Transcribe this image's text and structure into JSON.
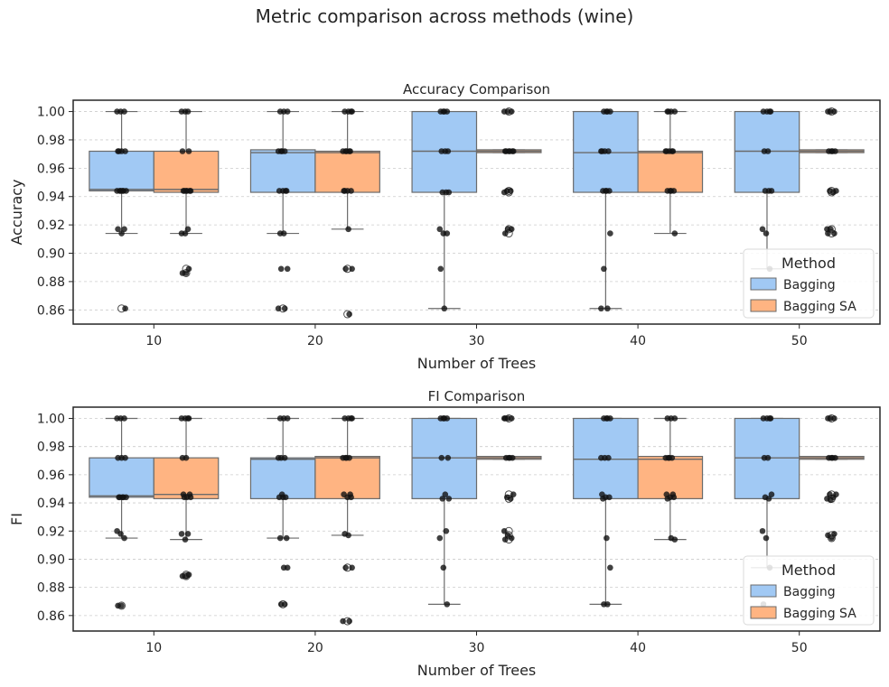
{
  "suptitle": "Metric comparison across methods (wine)",
  "colors": {
    "bagging": "#a1c9f4",
    "bagging_sa": "#ffb482",
    "box_edge": "#6b6b6b",
    "point": "#111111",
    "grid": "#cccccc"
  },
  "legend": {
    "title": "Method",
    "entries": [
      "Bagging",
      "Bagging SA"
    ],
    "placement": "lower-right"
  },
  "chart_data": [
    {
      "type": "box",
      "title": "Accuracy Comparison",
      "xlabel": "Number of Trees",
      "ylabel": "Accuracy",
      "categories": [
        "10",
        "20",
        "30",
        "40",
        "50"
      ],
      "ylim": [
        0.85,
        1.008
      ],
      "yticks": [
        "0.86",
        "0.88",
        "0.90",
        "0.92",
        "0.94",
        "0.96",
        "0.98",
        "1.00"
      ],
      "grid": "y-dashed",
      "series": [
        {
          "name": "Bagging",
          "boxes": [
            {
              "q1": 0.944,
              "median": 0.945,
              "q3": 0.972,
              "whisker_low": 0.914,
              "whisker_high": 1.0,
              "outliers": [
                0.861
              ]
            },
            {
              "q1": 0.943,
              "median": 0.971,
              "q3": 0.973,
              "whisker_low": 0.914,
              "whisker_high": 1.0,
              "outliers": [
                0.861
              ]
            },
            {
              "q1": 0.943,
              "median": 0.972,
              "q3": 1.0,
              "whisker_low": 0.861,
              "whisker_high": 1.0,
              "outliers": []
            },
            {
              "q1": 0.943,
              "median": 0.971,
              "q3": 1.0,
              "whisker_low": 0.861,
              "whisker_high": 1.0,
              "outliers": []
            },
            {
              "q1": 0.943,
              "median": 0.972,
              "q3": 1.0,
              "whisker_low": 0.889,
              "whisker_high": 1.0,
              "outliers": []
            }
          ],
          "points": [
            [
              1.0,
              1.0,
              1.0,
              0.972,
              0.972,
              0.972,
              0.972,
              0.944,
              0.944,
              0.944,
              0.944,
              0.944,
              0.944,
              0.917,
              0.917,
              0.914,
              0.861
            ],
            [
              1.0,
              1.0,
              1.0,
              0.972,
              0.972,
              0.972,
              0.972,
              0.944,
              0.944,
              0.944,
              0.944,
              0.914,
              0.914,
              0.889,
              0.889,
              0.861,
              0.861
            ],
            [
              1.0,
              1.0,
              1.0,
              1.0,
              0.972,
              0.972,
              0.972,
              0.943,
              0.943,
              0.943,
              0.917,
              0.914,
              0.914,
              0.889,
              0.861
            ],
            [
              1.0,
              1.0,
              1.0,
              1.0,
              0.972,
              0.972,
              0.972,
              0.972,
              0.944,
              0.944,
              0.944,
              0.944,
              0.914,
              0.889,
              0.861,
              0.861
            ],
            [
              1.0,
              1.0,
              1.0,
              1.0,
              0.972,
              0.972,
              0.944,
              0.944,
              0.944,
              0.917,
              0.914,
              0.889
            ]
          ]
        },
        {
          "name": "Bagging SA",
          "boxes": [
            {
              "q1": 0.943,
              "median": 0.945,
              "q3": 0.972,
              "whisker_low": 0.914,
              "whisker_high": 1.0,
              "outliers": [
                0.889,
                0.886
              ]
            },
            {
              "q1": 0.943,
              "median": 0.971,
              "q3": 0.972,
              "whisker_low": 0.917,
              "whisker_high": 1.0,
              "outliers": [
                0.889,
                0.857
              ]
            },
            {
              "q1": 0.971,
              "median": 0.972,
              "q3": 0.973,
              "whisker_low": 0.971,
              "whisker_high": 0.973,
              "outliers": [
                1.0,
                0.944,
                0.943,
                0.917,
                0.914
              ]
            },
            {
              "q1": 0.943,
              "median": 0.971,
              "q3": 0.972,
              "whisker_low": 0.914,
              "whisker_high": 1.0,
              "outliers": []
            },
            {
              "q1": 0.971,
              "median": 0.972,
              "q3": 0.973,
              "whisker_low": 0.971,
              "whisker_high": 0.973,
              "outliers": [
                1.0,
                0.944,
                0.943,
                0.917,
                0.914
              ]
            }
          ],
          "points": [
            [
              1.0,
              1.0,
              1.0,
              0.972,
              0.972,
              0.944,
              0.944,
              0.944,
              0.944,
              0.944,
              0.944,
              0.917,
              0.914,
              0.914,
              0.889,
              0.886,
              0.886
            ],
            [
              1.0,
              1.0,
              1.0,
              1.0,
              0.972,
              0.972,
              0.972,
              0.972,
              0.972,
              0.944,
              0.944,
              0.944,
              0.944,
              0.917,
              0.889,
              0.889,
              0.857
            ],
            [
              1.0,
              1.0,
              1.0,
              0.972,
              0.972,
              0.972,
              0.972,
              0.972,
              0.972,
              0.944,
              0.944,
              0.943,
              0.917,
              0.917,
              0.914
            ],
            [
              1.0,
              1.0,
              1.0,
              1.0,
              0.972,
              0.972,
              0.972,
              0.972,
              0.972,
              0.944,
              0.944,
              0.944,
              0.944,
              0.914
            ],
            [
              1.0,
              1.0,
              1.0,
              0.972,
              0.972,
              0.972,
              0.972,
              0.944,
              0.944,
              0.943,
              0.917,
              0.917,
              0.914,
              0.914
            ]
          ]
        }
      ]
    },
    {
      "type": "box",
      "title": "FI Comparison",
      "xlabel": "Number of Trees",
      "ylabel": "FI",
      "categories": [
        "10",
        "20",
        "30",
        "40",
        "50"
      ],
      "ylim": [
        0.849,
        1.008
      ],
      "yticks": [
        "0.86",
        "0.88",
        "0.90",
        "0.92",
        "0.94",
        "0.96",
        "0.98",
        "1.00"
      ],
      "grid": "y-dashed",
      "series": [
        {
          "name": "Bagging",
          "boxes": [
            {
              "q1": 0.944,
              "median": 0.945,
              "q3": 0.972,
              "whisker_low": 0.915,
              "whisker_high": 1.0,
              "outliers": [
                0.867
              ]
            },
            {
              "q1": 0.943,
              "median": 0.971,
              "q3": 0.972,
              "whisker_low": 0.915,
              "whisker_high": 1.0,
              "outliers": [
                0.868
              ]
            },
            {
              "q1": 0.943,
              "median": 0.972,
              "q3": 1.0,
              "whisker_low": 0.868,
              "whisker_high": 1.0,
              "outliers": []
            },
            {
              "q1": 0.943,
              "median": 0.971,
              "q3": 1.0,
              "whisker_low": 0.868,
              "whisker_high": 1.0,
              "outliers": []
            },
            {
              "q1": 0.943,
              "median": 0.972,
              "q3": 1.0,
              "whisker_low": 0.894,
              "whisker_high": 1.0,
              "outliers": []
            }
          ],
          "points": [
            [
              1.0,
              1.0,
              1.0,
              0.972,
              0.972,
              0.972,
              0.944,
              0.944,
              0.944,
              0.944,
              0.944,
              0.92,
              0.918,
              0.915,
              0.867,
              0.867
            ],
            [
              1.0,
              1.0,
              1.0,
              0.972,
              0.972,
              0.972,
              0.946,
              0.944,
              0.944,
              0.944,
              0.915,
              0.915,
              0.894,
              0.894,
              0.868,
              0.868
            ],
            [
              1.0,
              1.0,
              1.0,
              1.0,
              0.972,
              0.972,
              0.946,
              0.943,
              0.943,
              0.92,
              0.915,
              0.894,
              0.868
            ],
            [
              1.0,
              1.0,
              1.0,
              1.0,
              0.972,
              0.972,
              0.972,
              0.946,
              0.944,
              0.944,
              0.943,
              0.915,
              0.894,
              0.868,
              0.868
            ],
            [
              1.0,
              1.0,
              1.0,
              1.0,
              0.972,
              0.972,
              0.946,
              0.944,
              0.943,
              0.92,
              0.915,
              0.894,
              0.868
            ]
          ]
        },
        {
          "name": "Bagging SA",
          "boxes": [
            {
              "q1": 0.943,
              "median": 0.946,
              "q3": 0.972,
              "whisker_low": 0.914,
              "whisker_high": 1.0,
              "outliers": [
                0.889,
                0.888
              ]
            },
            {
              "q1": 0.943,
              "median": 0.972,
              "q3": 0.973,
              "whisker_low": 0.917,
              "whisker_high": 1.0,
              "outliers": [
                0.894,
                0.856
              ]
            },
            {
              "q1": 0.971,
              "median": 0.972,
              "q3": 0.973,
              "whisker_low": 0.971,
              "whisker_high": 0.973,
              "outliers": [
                1.0,
                0.946,
                0.943,
                0.92,
                0.917,
                0.914
              ]
            },
            {
              "q1": 0.943,
              "median": 0.971,
              "q3": 0.973,
              "whisker_low": 0.914,
              "whisker_high": 1.0,
              "outliers": []
            },
            {
              "q1": 0.971,
              "median": 0.972,
              "q3": 0.973,
              "whisker_low": 0.971,
              "whisker_high": 0.973,
              "outliers": [
                1.0,
                0.946,
                0.943,
                0.917,
                0.915
              ]
            }
          ],
          "points": [
            [
              1.0,
              1.0,
              1.0,
              1.0,
              0.972,
              0.972,
              0.946,
              0.946,
              0.944,
              0.944,
              0.944,
              0.918,
              0.918,
              0.914,
              0.889,
              0.888,
              0.888
            ],
            [
              1.0,
              1.0,
              1.0,
              1.0,
              0.972,
              0.972,
              0.972,
              0.972,
              0.946,
              0.946,
              0.944,
              0.944,
              0.918,
              0.917,
              0.894,
              0.894,
              0.856,
              0.856
            ],
            [
              1.0,
              1.0,
              1.0,
              1.0,
              0.972,
              0.972,
              0.972,
              0.972,
              0.946,
              0.944,
              0.943,
              0.92,
              0.917,
              0.915,
              0.914
            ],
            [
              1.0,
              1.0,
              1.0,
              0.972,
              0.972,
              0.972,
              0.972,
              0.946,
              0.946,
              0.944,
              0.944,
              0.943,
              0.915,
              0.914
            ],
            [
              1.0,
              1.0,
              1.0,
              0.972,
              0.972,
              0.972,
              0.972,
              0.946,
              0.946,
              0.944,
              0.943,
              0.942,
              0.918,
              0.917,
              0.915
            ]
          ]
        }
      ]
    }
  ]
}
